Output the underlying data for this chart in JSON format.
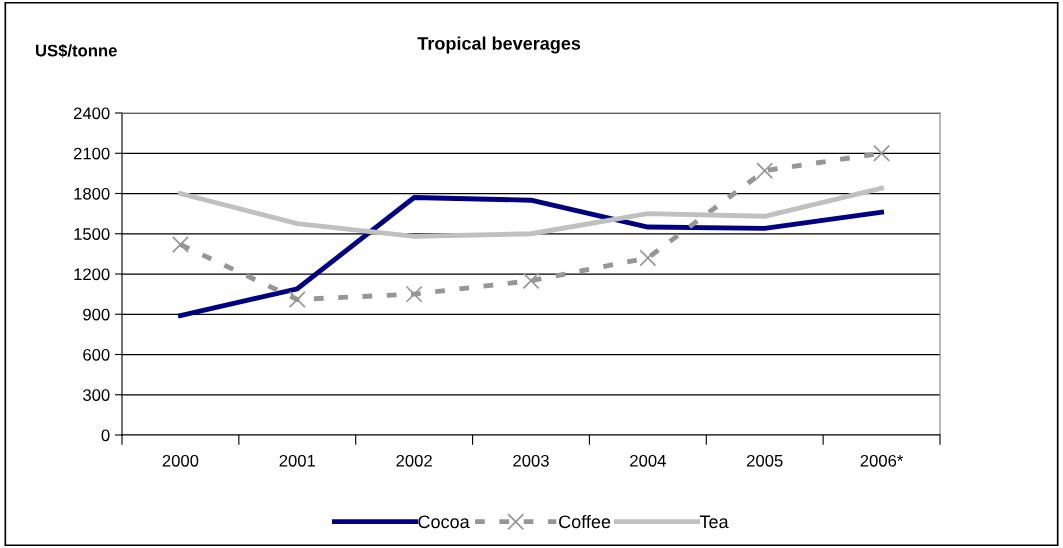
{
  "chart_data": {
    "type": "line",
    "title": "Tropical beverages",
    "ylabel": "US$/tonne",
    "categories": [
      "2000",
      "2001",
      "2002",
      "2003",
      "2004",
      "2005",
      "2006*"
    ],
    "series": [
      {
        "name": "Cocoa",
        "color": "#000080",
        "values": [
          890,
          1090,
          1770,
          1750,
          1550,
          1540,
          1660
        ],
        "line_style": "solid",
        "marker": "none"
      },
      {
        "name": "Coffee",
        "color": "#969696",
        "values": [
          1420,
          1010,
          1050,
          1150,
          1320,
          1970,
          2100
        ],
        "line_style": "dashed",
        "marker": "cross"
      },
      {
        "name": "Tea",
        "color": "#c0c0c0",
        "values": [
          1800,
          1575,
          1480,
          1500,
          1650,
          1630,
          1840
        ],
        "line_style": "solid",
        "marker": "none"
      }
    ],
    "ylim": [
      0,
      2400
    ],
    "yticks": [
      0,
      300,
      600,
      900,
      1200,
      1500,
      1800,
      2100,
      2400
    ],
    "grid": "y",
    "legend": "bottom"
  }
}
